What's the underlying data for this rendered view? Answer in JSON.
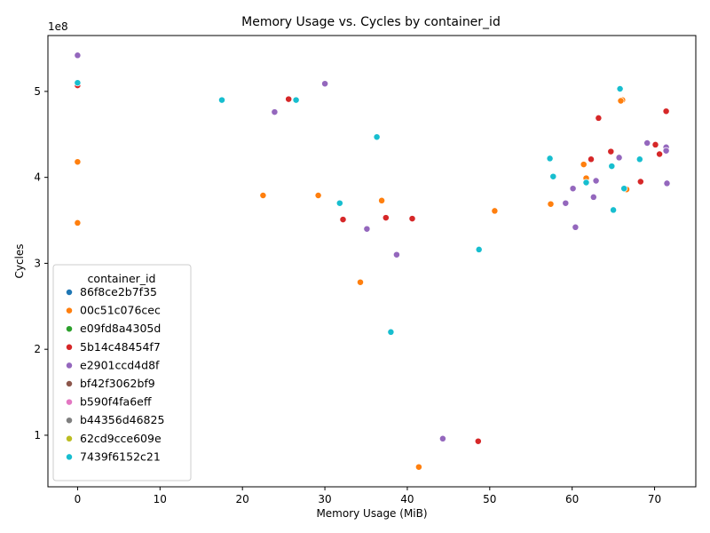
{
  "chart_data": {
    "type": "scatter",
    "title": "Memory Usage vs. Cycles by container_id",
    "xlabel": "Memory Usage (MiB)",
    "ylabel": "Cycles",
    "y_offset_label": "1e8",
    "xlim": [
      -3.6,
      75
    ],
    "ylim": [
      40000000,
      565000000
    ],
    "x_ticks": [
      0,
      10,
      20,
      30,
      40,
      50,
      60,
      70
    ],
    "y_ticks": [
      100000000,
      200000000,
      300000000,
      400000000,
      500000000
    ],
    "y_tick_labels": [
      "1",
      "2",
      "3",
      "4",
      "5"
    ],
    "grid": false,
    "legend": {
      "title": "container_id",
      "placement": "lower-left"
    },
    "series": [
      {
        "name": "86f8ce2b7f35",
        "color": "#1f77b4",
        "points": []
      },
      {
        "name": "00c51c076cec",
        "color": "#ff7f0e",
        "points": [
          [
            0,
            418000000
          ],
          [
            0,
            347000000
          ],
          [
            22.5,
            379000000
          ],
          [
            29.2,
            379000000
          ],
          [
            36.9,
            373000000
          ],
          [
            34.3,
            278000000
          ],
          [
            41.4,
            63000000
          ],
          [
            50.6,
            361000000
          ],
          [
            57.4,
            369000000
          ],
          [
            61.4,
            415000000
          ],
          [
            61.7,
            399000000
          ],
          [
            66.1,
            490000000
          ],
          [
            65.9,
            489000000
          ],
          [
            66.6,
            386000000
          ]
        ]
      },
      {
        "name": "e09fd8a4305d",
        "color": "#2ca02c",
        "points": []
      },
      {
        "name": "5b14c48454f7",
        "color": "#d62728",
        "points": [
          [
            0,
            507000000
          ],
          [
            25.6,
            491000000
          ],
          [
            32.2,
            351000000
          ],
          [
            37.4,
            353000000
          ],
          [
            40.6,
            352000000
          ],
          [
            48.6,
            93000000
          ],
          [
            62.3,
            421000000
          ],
          [
            63.2,
            469000000
          ],
          [
            64.7,
            430000000
          ],
          [
            68.3,
            395000000
          ],
          [
            70.1,
            438000000
          ],
          [
            70.6,
            427000000
          ],
          [
            71.4,
            477000000
          ]
        ]
      },
      {
        "name": "e2901ccd4d8f",
        "color": "#9467bd",
        "points": [
          [
            0,
            542000000
          ],
          [
            23.9,
            476000000
          ],
          [
            30.0,
            509000000
          ],
          [
            35.1,
            340000000
          ],
          [
            38.7,
            310000000
          ],
          [
            44.3,
            96000000
          ],
          [
            59.2,
            370000000
          ],
          [
            60.1,
            387000000
          ],
          [
            60.4,
            342000000
          ],
          [
            62.6,
            377000000
          ],
          [
            62.9,
            396000000
          ],
          [
            65.7,
            423000000
          ],
          [
            69.1,
            440000000
          ],
          [
            71.4,
            435000000
          ],
          [
            71.4,
            431000000
          ],
          [
            71.5,
            393000000
          ]
        ]
      },
      {
        "name": "bf42f3062bf9",
        "color": "#8c564b",
        "points": []
      },
      {
        "name": "b590f4fa6eff",
        "color": "#e377c2",
        "points": []
      },
      {
        "name": "b44356d46825",
        "color": "#7f7f7f",
        "points": []
      },
      {
        "name": "62cd9cce609e",
        "color": "#bcbd22",
        "points": []
      },
      {
        "name": "7439f6152c21",
        "color": "#17becf",
        "points": [
          [
            0,
            510000000
          ],
          [
            17.5,
            490000000
          ],
          [
            26.5,
            490000000
          ],
          [
            31.8,
            370000000
          ],
          [
            36.3,
            447000000
          ],
          [
            38.0,
            220000000
          ],
          [
            48.7,
            316000000
          ],
          [
            57.3,
            422000000
          ],
          [
            57.7,
            401000000
          ],
          [
            61.7,
            394000000
          ],
          [
            64.8,
            413000000
          ],
          [
            65.0,
            362000000
          ],
          [
            65.8,
            503000000
          ],
          [
            66.3,
            387000000
          ],
          [
            68.2,
            421000000
          ]
        ]
      }
    ]
  }
}
